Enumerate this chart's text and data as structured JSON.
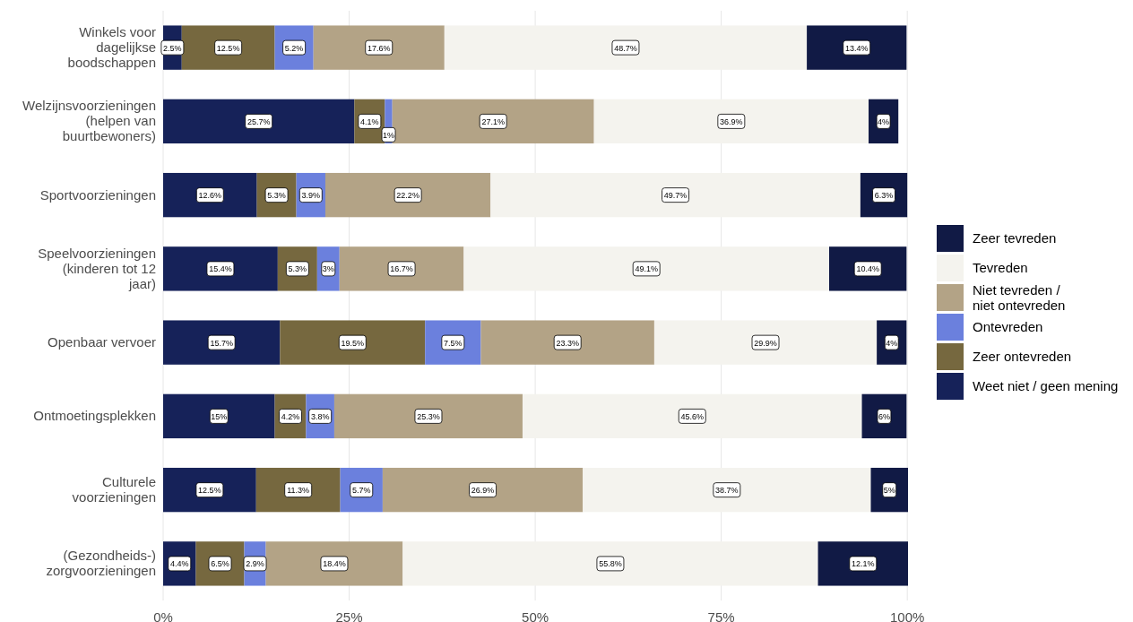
{
  "chart_data": {
    "type": "bar",
    "orientation": "horizontal",
    "stacked": true,
    "categories": [
      "Winkels voor dagelijkse boodschappen",
      "Welzijnsvoorzieningen (helpen van buurtbewoners)",
      "Sportvoorzieningen",
      "Speelvoorzieningen (kinderen tot 12 jaar)",
      "Openbaar vervoer",
      "Ontmoetingsplekken",
      "Culturele voorzieningen",
      "(Gezondheids-)zorgvoorzieningen"
    ],
    "series": [
      {
        "name": "Weet niet / geen mening",
        "color": "#162259",
        "values": [
          2.5,
          25.7,
          12.6,
          15.4,
          15.7,
          15,
          12.5,
          4.4
        ],
        "value_labels": [
          "2.5%",
          "25.7%",
          "12.6%",
          "15.4%",
          "15.7%",
          "15%",
          "12.5%",
          "4.4%"
        ]
      },
      {
        "name": "Zeer ontevreden",
        "color": "#76683f",
        "values": [
          12.5,
          4.1,
          5.3,
          5.3,
          19.5,
          4.2,
          11.3,
          6.5
        ],
        "value_labels": [
          "12.5%",
          "4.1%",
          "5.3%",
          "5.3%",
          "19.5%",
          "4.2%",
          "11.3%",
          "6.5%"
        ]
      },
      {
        "name": "Ontevreden",
        "color": "#6b80dd",
        "values": [
          5.2,
          1,
          3.9,
          3,
          7.5,
          3.8,
          5.7,
          2.9
        ],
        "value_labels": [
          "5.2%",
          "1%",
          "3.9%",
          "3%",
          "7.5%",
          "3.8%",
          "5.7%",
          "2.9%"
        ]
      },
      {
        "name": "Niet tevreden /\nniet ontevreden",
        "color": "#b3a386",
        "values": [
          17.6,
          27.1,
          22.2,
          16.7,
          23.3,
          25.3,
          26.9,
          18.4
        ],
        "value_labels": [
          "17.6%",
          "27.1%",
          "22.2%",
          "16.7%",
          "23.3%",
          "25.3%",
          "26.9%",
          "18.4%"
        ]
      },
      {
        "name": "Tevreden",
        "color": "#f4f3ee",
        "values": [
          48.7,
          36.9,
          49.7,
          49.1,
          29.9,
          45.6,
          38.7,
          55.8
        ],
        "value_labels": [
          "48.7%",
          "36.9%",
          "49.7%",
          "49.1%",
          "29.9%",
          "45.6%",
          "38.7%",
          "55.8%"
        ]
      },
      {
        "name": "Zeer tevreden",
        "color": "#111a45",
        "values": [
          13.4,
          4,
          6.3,
          10.4,
          4,
          6,
          5,
          12.1
        ],
        "value_labels": [
          "13.4%",
          "4%",
          "6.3%",
          "10.4%",
          "4%",
          "6%",
          "5%",
          "12.1%"
        ]
      }
    ],
    "xlim": [
      0,
      100.1
    ],
    "xticks": [
      {
        "value": 0,
        "label": "0%"
      },
      {
        "value": 25,
        "label": "25%"
      },
      {
        "value": 50,
        "label": "50%"
      },
      {
        "value": 75,
        "label": "75%"
      },
      {
        "value": 100,
        "label": "100%"
      }
    ],
    "grid": "x",
    "legend": "right"
  }
}
